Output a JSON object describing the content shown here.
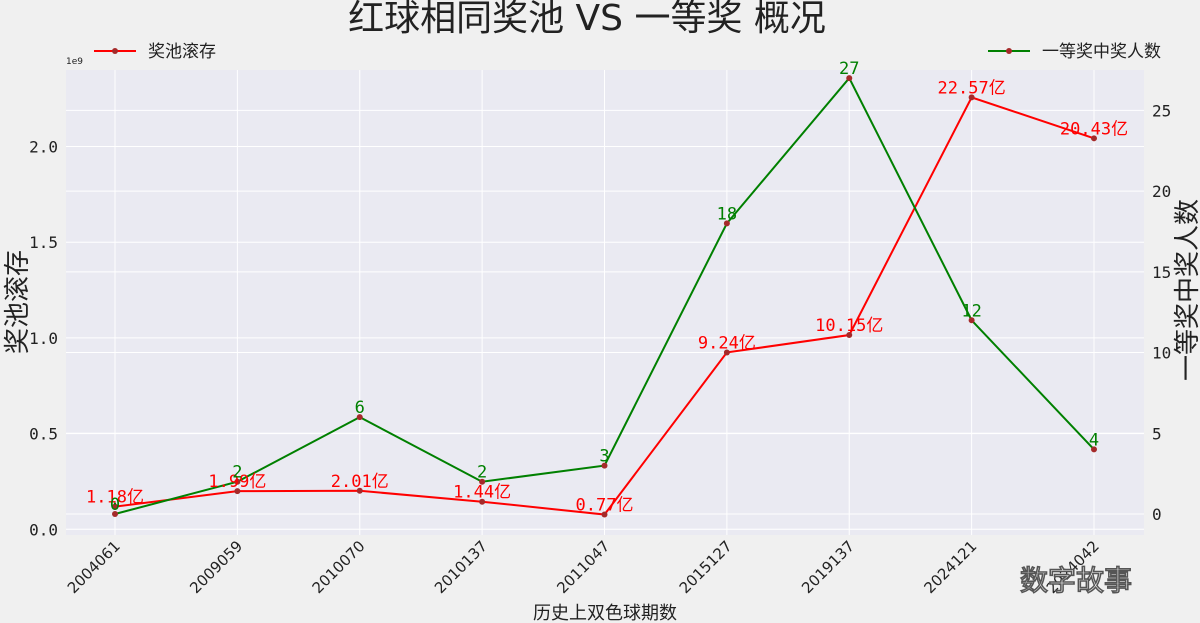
{
  "chart_data": {
    "type": "line",
    "title": "红球相同奖池 VS 一等奖 概况",
    "xlabel": "历史上双色球期数",
    "ylabel_left": "奖池滚存",
    "ylabel_right": "一等奖中奖人数",
    "left_scale_note": "1e9",
    "categories": [
      "2004061",
      "2009059",
      "2010070",
      "2010137",
      "2011047",
      "2015127",
      "2019137",
      "2024121",
      "2024042"
    ],
    "series": [
      {
        "name": "奖池滚存",
        "axis": "left",
        "color": "#ff0000",
        "values": [
          118000000,
          199000000,
          201000000,
          144000000,
          77000000,
          924000000,
          1015000000,
          2257000000,
          2043000000
        ],
        "labels": [
          "1.18亿",
          "1.99亿",
          "2.01亿",
          "1.44亿",
          "0.77亿",
          "9.24亿",
          "10.15亿",
          "22.57亿",
          "20.43亿"
        ]
      },
      {
        "name": "一等奖中奖人数",
        "axis": "right",
        "color": "#008000",
        "values": [
          0,
          2,
          6,
          2,
          3,
          18,
          27,
          12,
          4
        ],
        "labels": [
          "0",
          "2",
          "6",
          "2",
          "3",
          "18",
          "27",
          "12",
          "4"
        ]
      }
    ],
    "ylim_left": [
      -30000000,
      2400000000
    ],
    "ylim_right": [
      -1.3,
      27.5
    ],
    "yticks_left": [
      "0.0",
      "0.5",
      "1.0",
      "1.5",
      "2.0"
    ],
    "yticks_right": [
      "0",
      "5",
      "10",
      "15",
      "20",
      "25"
    ],
    "grid": true,
    "legend_left": "top-left",
    "legend_right": "top-right"
  },
  "watermark": "数字故事"
}
